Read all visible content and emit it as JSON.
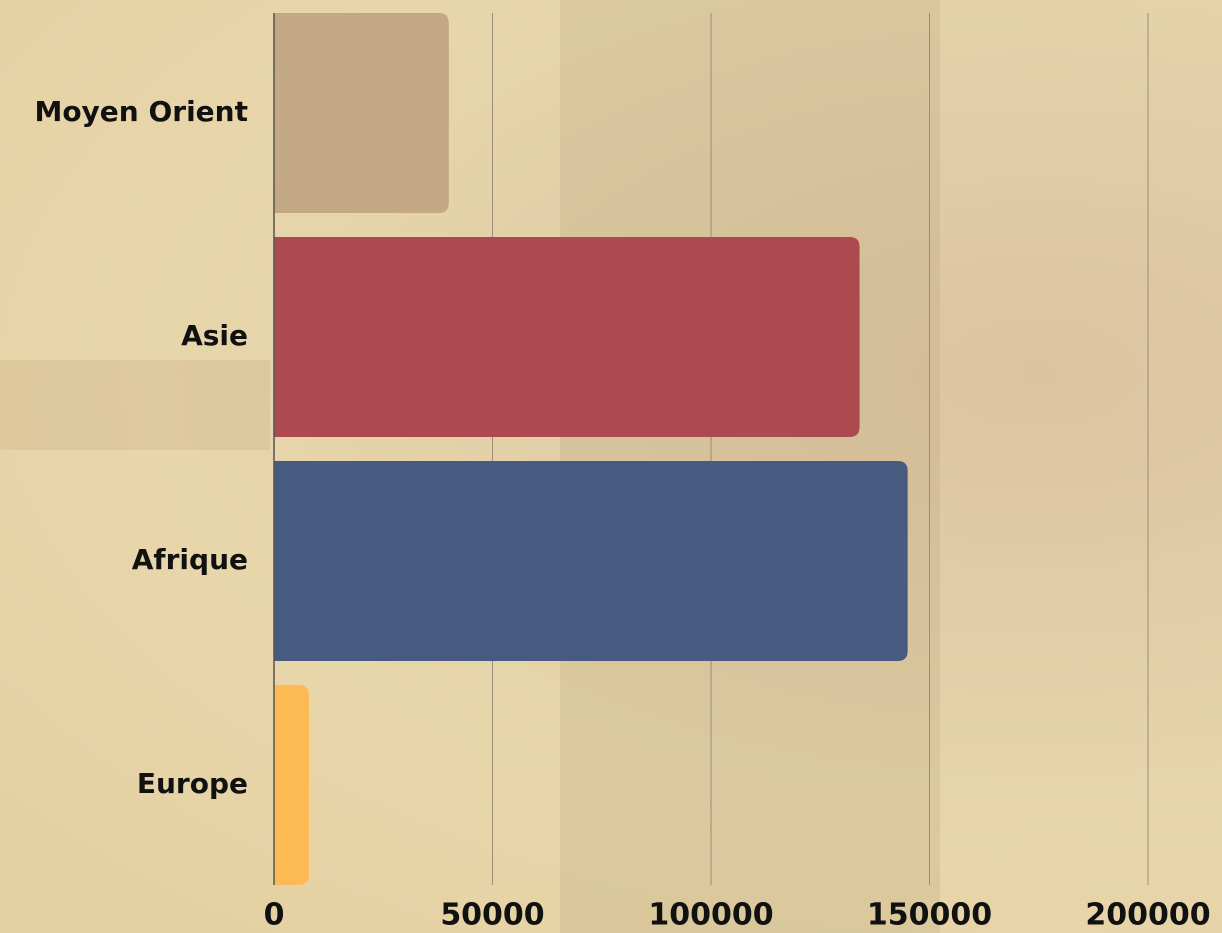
{
  "chart_data": {
    "type": "bar",
    "categories": [
      "Moyen Orient",
      "Asie",
      "Afrique",
      "Europe"
    ],
    "values": [
      40000,
      134000,
      145000,
      8000
    ],
    "colors": [
      "#c2a983",
      "#ad4a50",
      "#475a80",
      "#fdb954"
    ],
    "xlim": [
      0,
      200000
    ],
    "xticks": [
      0,
      50000,
      100000,
      150000,
      200000
    ],
    "grid": true
  }
}
